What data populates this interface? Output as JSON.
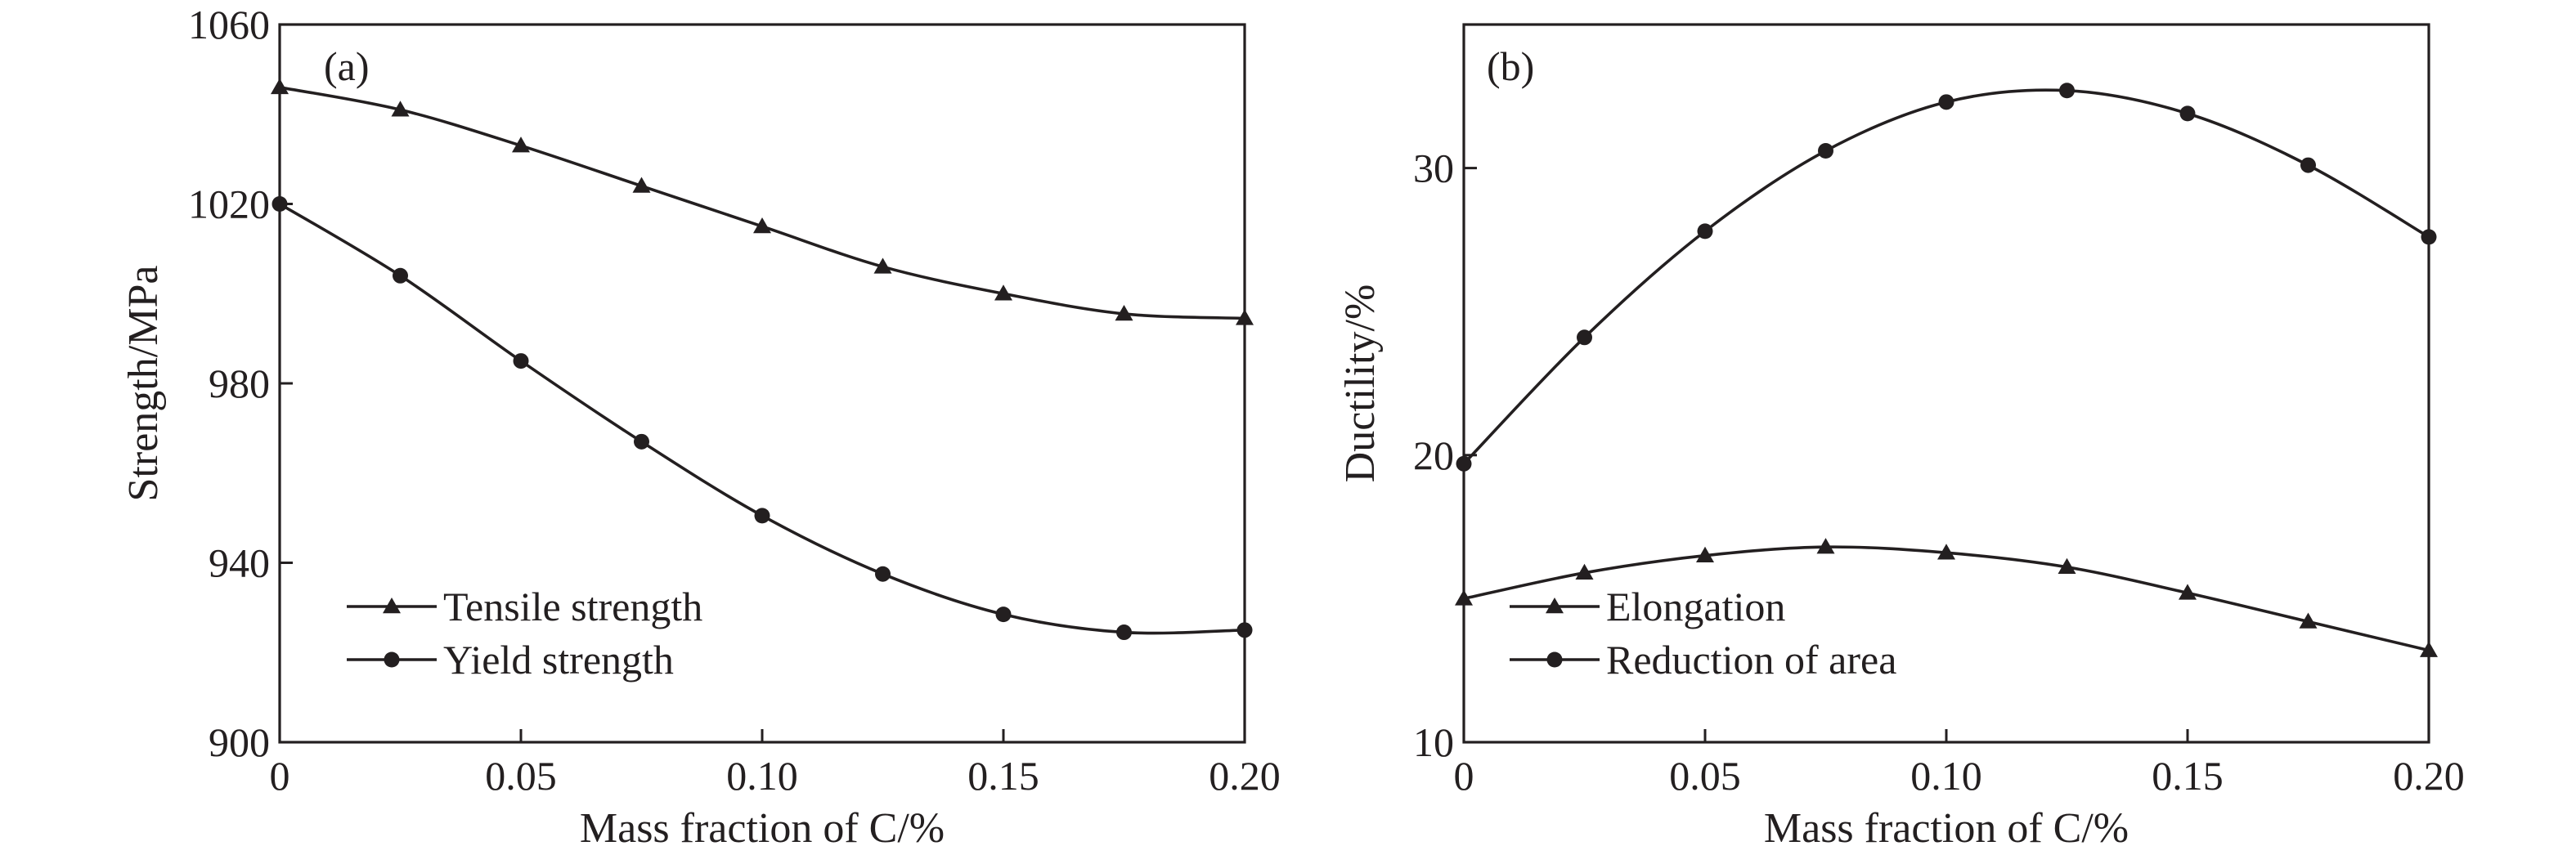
{
  "chart_data": [
    {
      "panel": "(a)",
      "type": "line",
      "xlabel": "Mass fraction of C/%",
      "ylabel": "Strength/MPa",
      "x": [
        0,
        0.025,
        0.05,
        0.075,
        0.1,
        0.125,
        0.15,
        0.175,
        0.2
      ],
      "xticks": [
        0,
        0.05,
        0.1,
        0.15,
        0.2
      ],
      "xtick_labels": [
        "0",
        "0.05",
        "0.10",
        "0.15",
        "0.20"
      ],
      "xlim": [
        0,
        0.2
      ],
      "yticks": [
        900,
        940,
        980,
        1020,
        1060
      ],
      "ytick_labels": [
        "900",
        "940",
        "980",
        "1020",
        "1060"
      ],
      "ylim": [
        900,
        1060
      ],
      "grid": false,
      "legend_position": "bottom-left",
      "series": [
        {
          "name": "Tensile strength",
          "marker": "triangle",
          "values": [
            1046,
            1041,
            1033,
            1024,
            1015,
            1006,
            1000,
            995.5,
            994.5
          ]
        },
        {
          "name": "Yield strength",
          "marker": "circle",
          "values": [
            1020,
            1004,
            985,
            967,
            950.5,
            937.5,
            928.5,
            924.5,
            925
          ]
        }
      ]
    },
    {
      "panel": "(b)",
      "type": "line",
      "xlabel": "Mass fraction of C/%",
      "ylabel": "Ductility/%",
      "x": [
        0,
        0.025,
        0.05,
        0.075,
        0.1,
        0.125,
        0.15,
        0.175,
        0.2
      ],
      "xticks": [
        0,
        0.05,
        0.1,
        0.15,
        0.2
      ],
      "xtick_labels": [
        "0",
        "0.05",
        "0.10",
        "0.15",
        "0.20"
      ],
      "xlim": [
        0,
        0.2
      ],
      "yticks": [
        10,
        20,
        30
      ],
      "ytick_labels": [
        "10",
        "20",
        "30"
      ],
      "ylim": [
        10,
        35
      ],
      "grid": false,
      "legend_position": "bottom-left",
      "series": [
        {
          "name": "Elongation",
          "marker": "triangle",
          "values": [
            15.0,
            15.9,
            16.5,
            16.8,
            16.6,
            16.1,
            15.2,
            14.2,
            13.2
          ]
        },
        {
          "name": "Reduction of area",
          "marker": "circle",
          "values": [
            19.7,
            24.1,
            27.8,
            30.6,
            32.3,
            32.7,
            31.9,
            30.1,
            27.6
          ]
        }
      ]
    }
  ]
}
